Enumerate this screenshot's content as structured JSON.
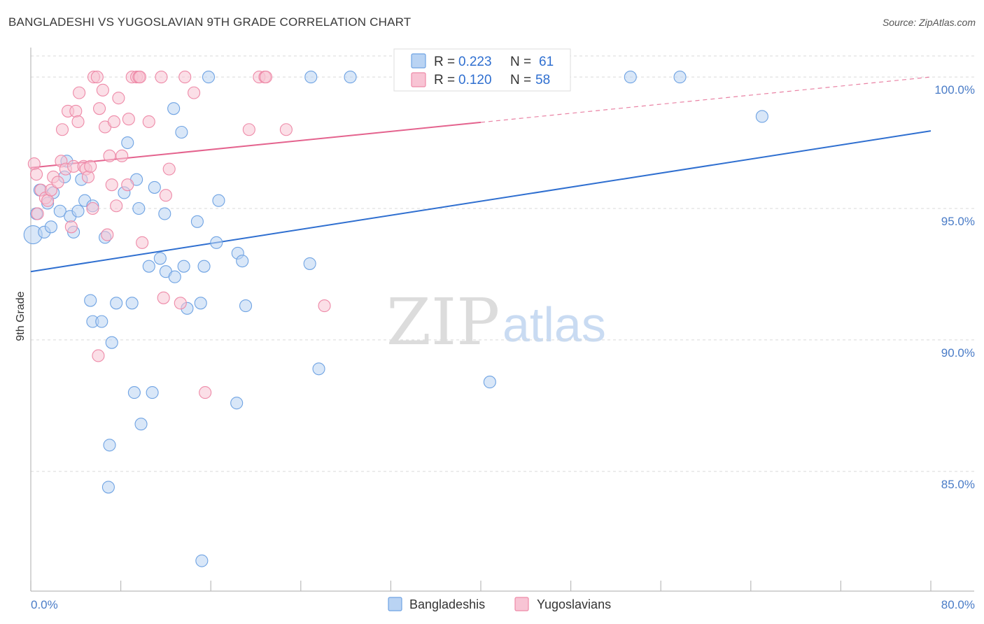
{
  "title": "BANGLADESHI VS YUGOSLAVIAN 9TH GRADE CORRELATION CHART",
  "source": "Source: ZipAtlas.com",
  "watermark": {
    "zip": "ZIP",
    "atlas": "atlas"
  },
  "colors": {
    "blue": "#6fa3e3",
    "blue_fill": "#b9d3f3",
    "blue_line": "#2f6fd0",
    "pink": "#ee8aa8",
    "pink_fill": "#f8c4d4",
    "pink_line": "#e4638e",
    "grid": "#d9d9d9",
    "tick_label": "#4a7cc7"
  },
  "legend": {
    "rows": [
      {
        "r_label": "R = ",
        "r_value": "0.223",
        "n_label": "N = ",
        "n_value": "61"
      },
      {
        "r_label": "R = ",
        "r_value": "0.120",
        "n_label": "N = ",
        "n_value": "58"
      }
    ]
  },
  "chart_data": {
    "type": "scatter",
    "title": "BANGLADESHI VS YUGOSLAVIAN 9TH GRADE CORRELATION CHART",
    "xlabel": "",
    "ylabel": "9th Grade",
    "xlim": [
      0,
      80
    ],
    "ylim": [
      80.5,
      100.8
    ],
    "x_tick_labels": [
      {
        "value": 0,
        "label": "0.0%"
      },
      {
        "value": 80,
        "label": "80.0%"
      }
    ],
    "x_minor_ticks": [
      0,
      8,
      16,
      24,
      32,
      40,
      48,
      56,
      64,
      72,
      80
    ],
    "y_ticks": [
      {
        "value": 100,
        "label": "100.0%"
      },
      {
        "value": 95,
        "label": "95.0%"
      },
      {
        "value": 90,
        "label": "90.0%"
      },
      {
        "value": 85,
        "label": "85.0%"
      }
    ],
    "series": [
      {
        "name": "Bangladeshis",
        "color": "blue",
        "trend": {
          "x0": 0,
          "y0": 92.6,
          "x1": 80,
          "y1": 97.95,
          "dashed_from": null
        },
        "points": [
          [
            0.2,
            94.0
          ],
          [
            0.5,
            94.8
          ],
          [
            0.8,
            95.7
          ],
          [
            1.2,
            94.1
          ],
          [
            1.5,
            95.2
          ],
          [
            1.8,
            94.3
          ],
          [
            2.0,
            95.6
          ],
          [
            2.6,
            94.9
          ],
          [
            3.0,
            96.2
          ],
          [
            3.2,
            96.8
          ],
          [
            3.5,
            94.7
          ],
          [
            3.8,
            94.1
          ],
          [
            4.2,
            94.9
          ],
          [
            4.5,
            96.1
          ],
          [
            4.8,
            95.3
          ],
          [
            5.5,
            95.1
          ],
          [
            5.3,
            91.5
          ],
          [
            5.5,
            90.7
          ],
          [
            6.3,
            90.7
          ],
          [
            6.6,
            93.9
          ],
          [
            7.2,
            89.9
          ],
          [
            7.6,
            91.4
          ],
          [
            8.3,
            95.6
          ],
          [
            8.6,
            97.5
          ],
          [
            9.0,
            91.4
          ],
          [
            9.4,
            96.1
          ],
          [
            9.6,
            95.0
          ],
          [
            9.2,
            88.0
          ],
          [
            9.8,
            86.8
          ],
          [
            7.0,
            86.0
          ],
          [
            6.9,
            84.4
          ],
          [
            10.5,
            92.8
          ],
          [
            10.8,
            88.0
          ],
          [
            11.0,
            95.8
          ],
          [
            11.5,
            93.1
          ],
          [
            11.9,
            94.8
          ],
          [
            12.0,
            92.6
          ],
          [
            12.7,
            98.8
          ],
          [
            12.8,
            92.4
          ],
          [
            13.4,
            97.9
          ],
          [
            13.6,
            92.8
          ],
          [
            13.9,
            91.2
          ],
          [
            14.8,
            94.5
          ],
          [
            15.1,
            91.4
          ],
          [
            15.4,
            92.8
          ],
          [
            15.2,
            81.6
          ],
          [
            15.8,
            100.0
          ],
          [
            16.5,
            93.7
          ],
          [
            16.7,
            95.3
          ],
          [
            18.3,
            87.6
          ],
          [
            18.4,
            93.3
          ],
          [
            18.8,
            93.0
          ],
          [
            19.1,
            91.3
          ],
          [
            24.8,
            92.9
          ],
          [
            24.9,
            100.0
          ],
          [
            25.6,
            88.9
          ],
          [
            28.4,
            100.0
          ],
          [
            40.8,
            88.4
          ],
          [
            53.3,
            100.0
          ],
          [
            57.7,
            100.0
          ],
          [
            65.0,
            98.5
          ]
        ]
      },
      {
        "name": "Yugoslavians",
        "color": "pink",
        "trend": {
          "x0": 0,
          "y0": 96.55,
          "x1": 80,
          "y1": 100.0,
          "dashed_from": 40
        },
        "points": [
          [
            0.3,
            96.7
          ],
          [
            0.5,
            96.3
          ],
          [
            0.6,
            94.8
          ],
          [
            0.9,
            95.7
          ],
          [
            1.3,
            95.4
          ],
          [
            1.5,
            95.3
          ],
          [
            1.8,
            95.7
          ],
          [
            2.0,
            96.2
          ],
          [
            2.4,
            96.0
          ],
          [
            2.7,
            96.8
          ],
          [
            2.8,
            98.0
          ],
          [
            3.1,
            96.5
          ],
          [
            3.3,
            98.7
          ],
          [
            3.6,
            94.3
          ],
          [
            3.8,
            96.6
          ],
          [
            4.0,
            98.7
          ],
          [
            4.2,
            98.3
          ],
          [
            4.3,
            99.4
          ],
          [
            4.7,
            96.6
          ],
          [
            4.9,
            96.5
          ],
          [
            5.1,
            96.2
          ],
          [
            5.3,
            96.6
          ],
          [
            5.5,
            95.0
          ],
          [
            5.6,
            100.0
          ],
          [
            5.9,
            100.0
          ],
          [
            6.1,
            98.8
          ],
          [
            6.0,
            89.4
          ],
          [
            6.4,
            99.5
          ],
          [
            6.6,
            98.1
          ],
          [
            6.8,
            94.0
          ],
          [
            7.0,
            97.0
          ],
          [
            7.2,
            95.9
          ],
          [
            7.4,
            98.3
          ],
          [
            7.6,
            95.1
          ],
          [
            7.8,
            99.2
          ],
          [
            8.1,
            97.0
          ],
          [
            8.6,
            95.9
          ],
          [
            8.7,
            98.4
          ],
          [
            9.0,
            100.0
          ],
          [
            9.4,
            100.0
          ],
          [
            9.6,
            100.0
          ],
          [
            9.7,
            100.0
          ],
          [
            9.9,
            93.7
          ],
          [
            10.5,
            98.3
          ],
          [
            11.6,
            100.0
          ],
          [
            11.8,
            91.6
          ],
          [
            12.0,
            95.5
          ],
          [
            13.3,
            91.4
          ],
          [
            13.7,
            100.0
          ],
          [
            14.5,
            99.4
          ],
          [
            15.5,
            88.0
          ],
          [
            20.3,
            100.0
          ],
          [
            20.8,
            100.0
          ],
          [
            20.9,
            100.0
          ],
          [
            22.7,
            98.0
          ],
          [
            26.1,
            91.3
          ],
          [
            19.4,
            98.0
          ],
          [
            12.3,
            96.5
          ]
        ]
      }
    ]
  },
  "bottom_legend": {
    "items": [
      "Bangladeshis",
      "Yugoslavians"
    ]
  }
}
